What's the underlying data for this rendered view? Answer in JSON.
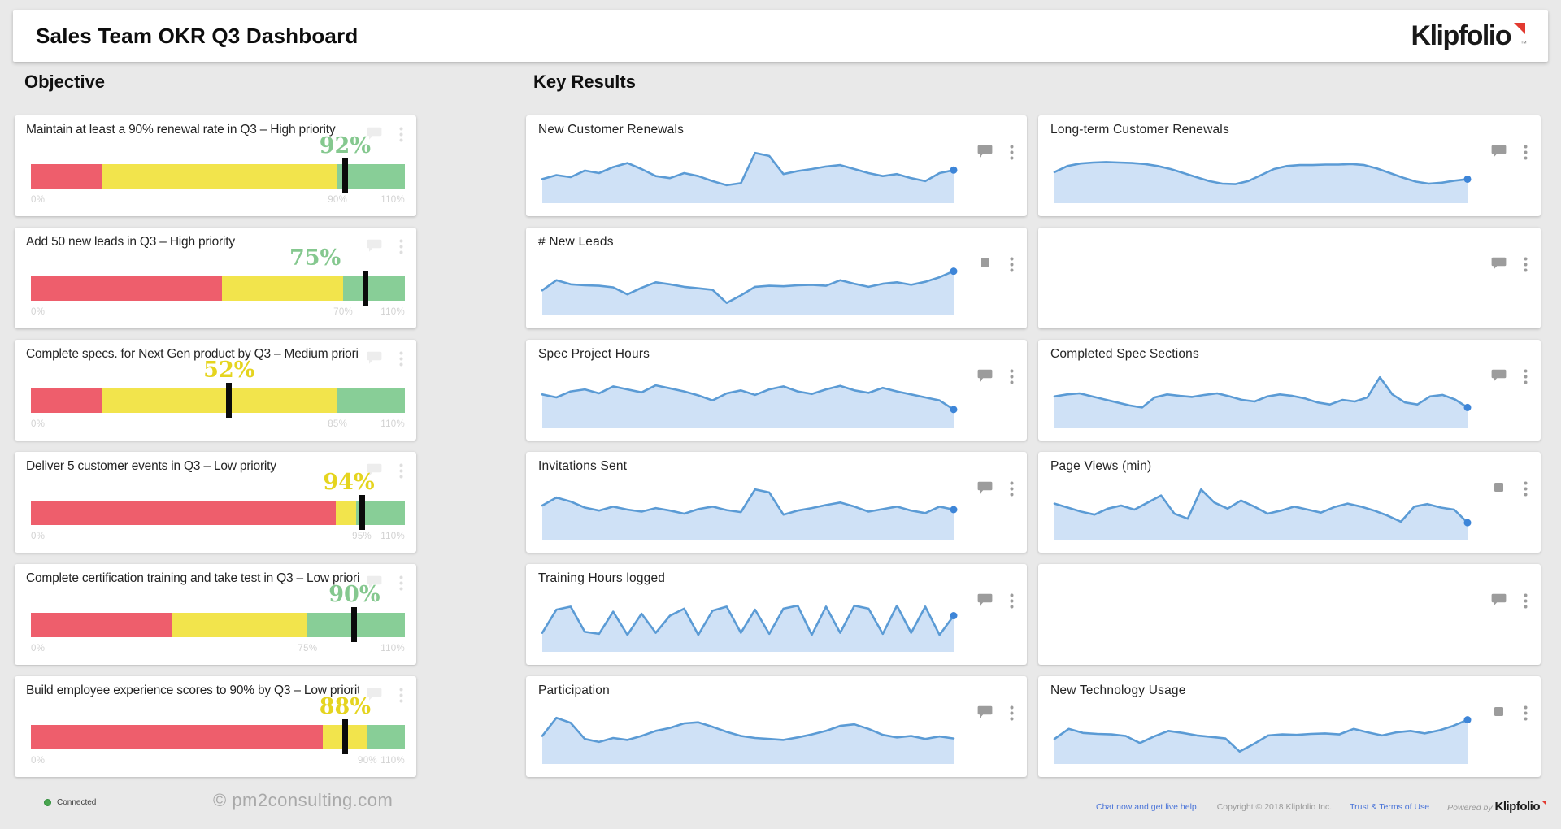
{
  "header": {
    "title": "Sales Team OKR Q3 Dashboard",
    "logo": "Klipfolio",
    "logo_tm": "™"
  },
  "sections": {
    "objective": "Objective",
    "key_results": "Key Results"
  },
  "colors": {
    "background": "#e9e9e9",
    "band_red": "#ee5e6c",
    "band_yellow": "#f2e44c",
    "band_green": "#88ce97",
    "value_green": "#85c88f",
    "value_yellow": "#e5d41f",
    "marker_black": "#0b0b0b",
    "tick_gray": "#d2d2d2",
    "spark_stroke": "#5b9bd5",
    "spark_fill": "#cfe1f6",
    "spark_dot": "#3d85d8",
    "icon_gray": "#9c9c9c",
    "icon_faint_bubble": "#ededed",
    "icon_faint_dots": "#dedede",
    "logo_red": "#e23a30",
    "link_blue": "#4a74d8",
    "connected_green": "#49a54f"
  },
  "chart_data": {
    "bullet_charts": [
      {
        "type": "bullet",
        "title": "Maintain at least a 90% renewal rate in Q3 – High priority",
        "value_label": "92%",
        "value": 92,
        "status": "green",
        "bands_pct": {
          "red_end": 19,
          "yellow_end": 82
        },
        "marker_pct": 84,
        "label_pct": 84,
        "ticks": [
          {
            "label": "0%",
            "pos": 0
          },
          {
            "label": "90%",
            "pos": 82
          },
          {
            "label": "110%",
            "pos": 100
          }
        ]
      },
      {
        "type": "bullet",
        "title": "Add 50 new leads in Q3 – High priority",
        "value_label": "75%",
        "value": 75,
        "status": "green",
        "bands_pct": {
          "red_end": 51,
          "yellow_end": 83.5
        },
        "marker_pct": 89.5,
        "label_pct": 76,
        "ticks": [
          {
            "label": "0%",
            "pos": 0
          },
          {
            "label": "70%",
            "pos": 83.5
          },
          {
            "label": "110%",
            "pos": 100
          }
        ]
      },
      {
        "type": "bullet",
        "title": "Complete specs. for Next Gen product by Q3 – Medium priority",
        "value_label": "52%",
        "value": 52,
        "status": "yellow",
        "bands_pct": {
          "red_end": 19,
          "yellow_end": 82
        },
        "marker_pct": 53,
        "label_pct": 53,
        "ticks": [
          {
            "label": "0%",
            "pos": 0
          },
          {
            "label": "85%",
            "pos": 82
          },
          {
            "label": "110%",
            "pos": 100
          }
        ]
      },
      {
        "type": "bullet",
        "title": "Deliver 5 customer events in Q3 – Low priority",
        "value_label": "94%",
        "value": 94,
        "status": "yellow",
        "bands_pct": {
          "red_end": 81.5,
          "yellow_end": 87
        },
        "marker_pct": 88.5,
        "label_pct": 85,
        "ticks": [
          {
            "label": "0%",
            "pos": 0
          },
          {
            "label": "95%",
            "pos": 88.5
          },
          {
            "label": "110%",
            "pos": 100
          }
        ]
      },
      {
        "type": "bullet",
        "title": "Complete certification training and take test in Q3 – Low priority",
        "value_label": "90%",
        "value": 90,
        "status": "green",
        "bands_pct": {
          "red_end": 37.5,
          "yellow_end": 74
        },
        "marker_pct": 86.5,
        "label_pct": 86.5,
        "ticks": [
          {
            "label": "0%",
            "pos": 0
          },
          {
            "label": "75%",
            "pos": 74
          },
          {
            "label": "110%",
            "pos": 100
          }
        ]
      },
      {
        "type": "bullet",
        "title": "Build employee experience scores to 90% by Q3 – Low priority",
        "value_label": "88%",
        "value": 88,
        "status": "yellow",
        "bands_pct": {
          "red_end": 78,
          "yellow_end": 90
        },
        "marker_pct": 84,
        "label_pct": 84,
        "ticks": [
          {
            "label": "0%",
            "pos": 0
          },
          {
            "label": "90%",
            "pos": 90
          },
          {
            "label": "110%",
            "pos": 100
          }
        ]
      }
    ],
    "sparklines": {
      "left": [
        {
          "type": "area",
          "title": "New Customer Renewals",
          "icon": "comment",
          "end_dot": true,
          "points": [
            38,
            46,
            42,
            55,
            50,
            62,
            70,
            58,
            44,
            40,
            50,
            44,
            34,
            26,
            30,
            90,
            84,
            48,
            54,
            58,
            63,
            66,
            58,
            50,
            44,
            48,
            40,
            34,
            50,
            56
          ]
        },
        {
          "type": "area",
          "title": "# New Leads",
          "icon": "comment-small",
          "end_dot": true,
          "points": [
            40,
            60,
            52,
            50,
            49,
            46,
            32,
            45,
            56,
            52,
            47,
            44,
            41,
            15,
            30,
            47,
            49,
            48,
            50,
            51,
            49,
            60,
            53,
            47,
            53,
            56,
            51,
            57,
            66,
            78
          ]
        },
        {
          "type": "area",
          "title": "Spec Project Hours",
          "icon": "comment",
          "end_dot": true,
          "points": [
            56,
            50,
            62,
            66,
            58,
            72,
            66,
            60,
            74,
            68,
            62,
            54,
            44,
            58,
            64,
            55,
            66,
            72,
            62,
            57,
            66,
            73,
            64,
            59,
            69,
            62,
            56,
            50,
            44,
            26
          ]
        },
        {
          "type": "area",
          "title": "Invitations Sent",
          "icon": "comment",
          "end_dot": true,
          "points": [
            58,
            74,
            66,
            54,
            48,
            56,
            50,
            46,
            53,
            48,
            42,
            51,
            56,
            49,
            45,
            90,
            84,
            40,
            48,
            53,
            59,
            64,
            56,
            46,
            51,
            56,
            48,
            43,
            56,
            50
          ]
        },
        {
          "type": "area",
          "title": "Training Hours logged",
          "icon": "comment",
          "end_dot": true,
          "points": [
            28,
            74,
            80,
            30,
            26,
            70,
            24,
            66,
            28,
            62,
            76,
            24,
            72,
            80,
            28,
            74,
            26,
            76,
            82,
            24,
            80,
            28,
            82,
            76,
            26,
            82,
            28,
            80,
            24,
            62
          ]
        },
        {
          "type": "area",
          "title": "Participation",
          "icon": "comment",
          "end_dot": false,
          "points": [
            46,
            82,
            72,
            40,
            34,
            42,
            38,
            46,
            56,
            62,
            71,
            73,
            64,
            54,
            46,
            42,
            40,
            38,
            43,
            49,
            56,
            66,
            69,
            60,
            48,
            43,
            46,
            40,
            45,
            41
          ]
        }
      ],
      "right": [
        {
          "type": "area",
          "title": "Long-term Customer Renewals",
          "icon": "comment",
          "end_dot": true,
          "points": [
            52,
            64,
            69,
            71,
            72,
            71,
            70,
            68,
            64,
            58,
            50,
            42,
            34,
            29,
            28,
            34,
            46,
            58,
            64,
            66,
            66,
            67,
            67,
            68,
            66,
            59,
            50,
            41,
            33,
            29,
            31,
            35,
            38
          ]
        },
        {
          "type": "empty",
          "title": null,
          "icon": "comment",
          "end_dot": false,
          "points": null
        },
        {
          "type": "area",
          "title": "Completed Spec Sections",
          "icon": "comment",
          "end_dot": true,
          "points": [
            52,
            56,
            58,
            52,
            46,
            40,
            34,
            30,
            50,
            56,
            53,
            51,
            55,
            58,
            52,
            45,
            42,
            52,
            56,
            53,
            48,
            40,
            36,
            45,
            42,
            50,
            90,
            56,
            40,
            36,
            52,
            55,
            46,
            30
          ]
        },
        {
          "type": "area",
          "title": "Page Views (min)",
          "icon": "comment-small",
          "end_dot": true,
          "points": [
            62,
            54,
            46,
            40,
            52,
            58,
            50,
            64,
            78,
            42,
            32,
            90,
            64,
            52,
            68,
            56,
            42,
            48,
            56,
            50,
            44,
            55,
            62,
            56,
            48,
            38,
            26,
            56,
            61,
            54,
            50,
            24
          ]
        },
        {
          "type": "empty",
          "title": null,
          "icon": "comment",
          "end_dot": false,
          "points": null
        },
        {
          "type": "area",
          "title": "New Technology Usage",
          "icon": "comment-small",
          "end_dot": true,
          "points": [
            40,
            60,
            52,
            50,
            49,
            46,
            32,
            45,
            56,
            52,
            47,
            44,
            41,
            15,
            30,
            47,
            49,
            48,
            50,
            51,
            49,
            60,
            53,
            47,
            53,
            56,
            51,
            57,
            66,
            78
          ]
        }
      ]
    }
  },
  "footer": {
    "connected": "Connected",
    "watermark": "© pm2consulting.com",
    "chat_link": "Chat now and get live help.",
    "copyright": "Copyright © 2018 Klipfolio Inc.",
    "terms_link": "Trust & Terms of Use",
    "powered_by": "Powered by",
    "powered_logo": "Klipfolio"
  }
}
